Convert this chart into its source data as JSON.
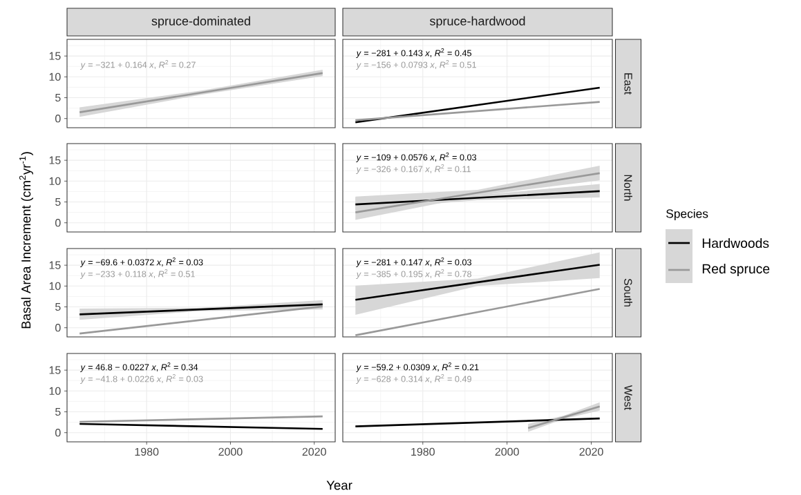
{
  "chart_data": [
    {
      "type": "line",
      "title": "spruce-dominated",
      "xlim": [
        1961,
        2025
      ],
      "ylim": [
        -2.2,
        19
      ],
      "xticks": [
        1980,
        2000,
        2020
      ],
      "yticks": [
        0,
        5,
        10,
        15
      ],
      "grid": true,
      "tick_labels": "y",
      "annotations": [
        "*y* = −321 + 0.164 *x*, *R*$^{2}$ = 0.27"
      ],
      "series": [
        {
          "color": "#999999",
          "x": [
            1964,
            1993,
            2022
          ],
          "values": [
            1.5,
            6.2,
            10.9
          ],
          "lower": [
            0.4,
            5.7,
            10.2
          ],
          "upper": [
            2.7,
            6.7,
            11.7
          ]
        }
      ]
    },
    {
      "type": "line",
      "title": "spruce-hardwood",
      "y2label": "East",
      "xlim": [
        1961,
        2025
      ],
      "ylim": [
        -2.2,
        19
      ],
      "xticks": [
        1980,
        2000,
        2020
      ],
      "yticks": [
        0,
        5,
        10,
        15
      ],
      "grid": true,
      "tick_labels": false,
      "annotations": [
        "*y* = −281 + 0.143 *x*, *R*$^{2}$ = 0.45",
        "*y* = −156 + 0.0793 *x*, *R*$^{2}$ = 0.51"
      ],
      "series": [
        {
          "color": "#000000",
          "x": [
            1964,
            2022
          ],
          "values": [
            -0.9,
            7.4
          ]
        },
        {
          "color": "#999999",
          "x": [
            1964,
            2022
          ],
          "values": [
            -0.4,
            4.0
          ]
        }
      ]
    },
    {
      "type": "line",
      "ylabel": "Basal Area Increment  (cm$^{2}$yr$^{-1}$)",
      "xlim": [
        1961,
        2025
      ],
      "ylim": [
        -2.2,
        19
      ],
      "xticks": [
        1980,
        2000,
        2020
      ],
      "yticks": [
        0,
        5,
        10,
        15
      ],
      "grid": true,
      "tick_labels": "y"
    },
    {
      "type": "line",
      "y2label": "North",
      "legend_title": "Species",
      "legend": "right",
      "xlim": [
        1961,
        2025
      ],
      "ylim": [
        -2.2,
        19
      ],
      "xticks": [
        1980,
        2000,
        2020
      ],
      "yticks": [
        0,
        5,
        10,
        15
      ],
      "grid": true,
      "tick_labels": false,
      "annotations": [
        "*y* = −109 + 0.0576 *x*, *R*$^{2}$ = 0.03",
        "*y* = −326 + 0.167 *x*, *R*$^{2}$ = 0.11"
      ],
      "series": [
        {
          "name": "Hardwoods",
          "color": "#000000",
          "x": [
            1964,
            1993,
            2022
          ],
          "values": [
            4.4,
            6.0,
            7.6
          ],
          "lower": [
            3.1,
            5.4,
            6.1
          ],
          "upper": [
            6.1,
            6.6,
            9.3
          ]
        },
        {
          "name": "Red spruce",
          "color": "#999999",
          "x": [
            1964,
            1993,
            2022
          ],
          "values": [
            2.5,
            7.2,
            11.9
          ],
          "lower": [
            0.7,
            6.5,
            10.2
          ],
          "upper": [
            6.3,
            7.9,
            13.7
          ]
        }
      ]
    },
    {
      "type": "line",
      "xlim": [
        1961,
        2025
      ],
      "ylim": [
        -2.2,
        19
      ],
      "xticks": [
        1980,
        2000,
        2020
      ],
      "yticks": [
        0,
        5,
        10,
        15
      ],
      "grid": true,
      "tick_labels": "y",
      "annotations": [
        "*y* = −69.6 + 0.0372 *x*, *R*$^{2}$ = 0.03",
        "*y* = −233 + 0.118 *x*, *R*$^{2}$ = 0.51"
      ],
      "series": [
        {
          "color": "#000000",
          "x": [
            1964,
            1993,
            2022
          ],
          "values": [
            3.2,
            4.4,
            5.6
          ],
          "lower": [
            1.9,
            4.0,
            4.4
          ],
          "upper": [
            4.6,
            4.8,
            6.6
          ]
        },
        {
          "color": "#999999",
          "x": [
            1964,
            2022
          ],
          "values": [
            -1.4,
            5.1
          ]
        }
      ]
    },
    {
      "type": "line",
      "y2label": "South",
      "xlim": [
        1961,
        2025
      ],
      "ylim": [
        -2.2,
        19
      ],
      "xticks": [
        1980,
        2000,
        2020
      ],
      "yticks": [
        0,
        5,
        10,
        15
      ],
      "grid": true,
      "tick_labels": false,
      "annotations": [
        "*y* = −281 + 0.147 *x*, *R*$^{2}$ = 0.03",
        "*y* = −385 + 0.195 *x*, *R*$^{2}$ = 0.78"
      ],
      "series": [
        {
          "color": "#000000",
          "x": [
            1964,
            1993,
            2022
          ],
          "values": [
            6.7,
            10.9,
            15.1
          ],
          "lower": [
            3.1,
            10.0,
            11.9
          ],
          "upper": [
            10.1,
            11.8,
            18.1
          ]
        },
        {
          "color": "#999999",
          "x": [
            1964,
            2022
          ],
          "values": [
            -1.8,
            9.3
          ]
        }
      ]
    },
    {
      "type": "line",
      "xlabel": "Year",
      "xlim": [
        1961,
        2025
      ],
      "ylim": [
        -2.2,
        19
      ],
      "xticks": [
        1980,
        2000,
        2020
      ],
      "yticks": [
        0,
        5,
        10,
        15
      ],
      "grid": true,
      "annotations": [
        "*y* = 46.8 − 0.0227 *x*, *R*$^{2}$ = 0.34",
        "*y* = −41.8 + 0.0226 *x*, *R*$^{2}$ = 0.03"
      ],
      "series": [
        {
          "color": "#000000",
          "x": [
            1964,
            2022
          ],
          "values": [
            2.1,
            0.9
          ]
        },
        {
          "color": "#999999",
          "x": [
            1964,
            2022
          ],
          "values": [
            2.6,
            3.9
          ]
        }
      ]
    },
    {
      "type": "line",
      "y2label": "West",
      "xlim": [
        1961,
        2025
      ],
      "ylim": [
        -2.2,
        19
      ],
      "xticks": [
        1980,
        2000,
        2020
      ],
      "yticks": [
        0,
        5,
        10,
        15
      ],
      "grid": true,
      "tick_labels": "x",
      "annotations": [
        "*y* = −59.2 + 0.0309 *x*, *R*$^{2}$ = 0.21",
        "*y* = −628 + 0.314 *x*, *R*$^{2}$ = 0.49"
      ],
      "series": [
        {
          "color": "#000000",
          "x": [
            1964,
            2022
          ],
          "values": [
            1.5,
            3.4
          ]
        },
        {
          "color": "#999999",
          "x": [
            2005,
            2013.5,
            2022
          ],
          "values": [
            1.1,
            3.7,
            6.3
          ],
          "lower": [
            0.2,
            3.3,
            5.3
          ],
          "upper": [
            2.1,
            4.1,
            7.3
          ]
        }
      ]
    }
  ]
}
